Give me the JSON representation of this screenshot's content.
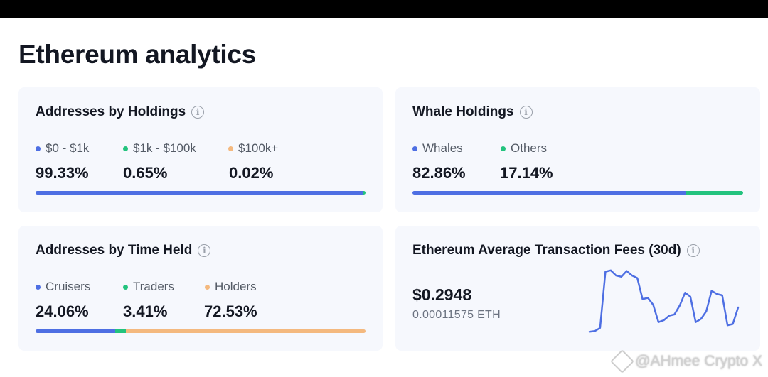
{
  "page_title": "Ethereum analytics",
  "cards": {
    "holdings": {
      "title": "Addresses by Holdings",
      "items": [
        {
          "label": "$0 - $1k",
          "value": "99.33%",
          "color": "#4e6fe3",
          "fraction": 0.9933
        },
        {
          "label": "$1k - $100k",
          "value": "0.65%",
          "color": "#23c37e",
          "fraction": 0.0065
        },
        {
          "label": "$100k+",
          "value": "0.02%",
          "color": "#f4b97f",
          "fraction": 0.0002
        }
      ]
    },
    "whale": {
      "title": "Whale Holdings",
      "items": [
        {
          "label": "Whales",
          "value": "82.86%",
          "color": "#4e6fe3",
          "fraction": 0.8286
        },
        {
          "label": "Others",
          "value": "17.14%",
          "color": "#23c37e",
          "fraction": 0.1714
        }
      ]
    },
    "time_held": {
      "title": "Addresses by Time Held",
      "items": [
        {
          "label": "Cruisers",
          "value": "24.06%",
          "color": "#4e6fe3",
          "fraction": 0.2406
        },
        {
          "label": "Traders",
          "value": "3.41%",
          "color": "#23c37e",
          "fraction": 0.0341
        },
        {
          "label": "Holders",
          "value": "72.53%",
          "color": "#f4b97f",
          "fraction": 0.7253
        }
      ]
    },
    "fees": {
      "title": "Ethereum Average Transaction Fees (30d)",
      "price": "$0.2948",
      "eth": "0.00011575 ETH",
      "line_color": "#4e6fe3",
      "sparkline": [
        0.02,
        0.03,
        0.08,
        0.96,
        0.98,
        0.9,
        0.88,
        0.97,
        0.9,
        0.86,
        0.53,
        0.55,
        0.44,
        0.17,
        0.2,
        0.27,
        0.29,
        0.43,
        0.63,
        0.57,
        0.17,
        0.22,
        0.34,
        0.66,
        0.61,
        0.59,
        0.12,
        0.14,
        0.4
      ]
    }
  },
  "watermark": "@AHmee Crypto X"
}
